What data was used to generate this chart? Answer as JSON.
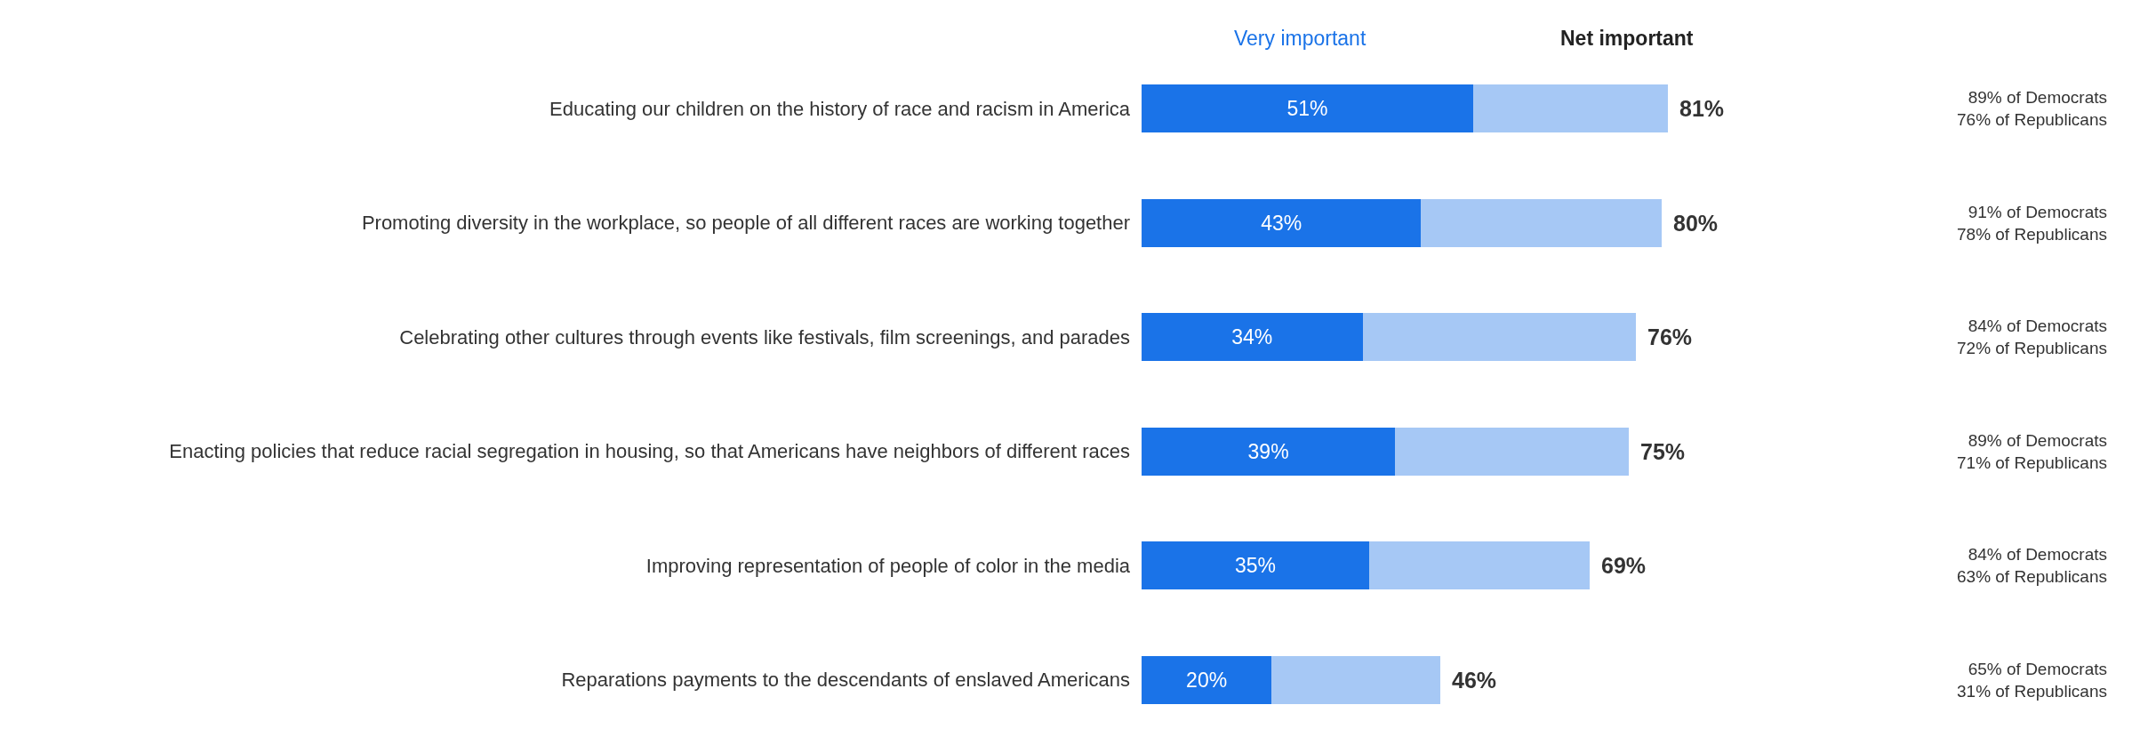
{
  "chart_data": {
    "type": "bar",
    "orientation": "horizontal",
    "stacked": true,
    "legend": false,
    "tick_labels": "y",
    "categories": [
      "Educating our children on the history of race and racism in America",
      "Promoting diversity in the workplace, so people of all different races are working together",
      "Celebrating other cultures through events like festivals, film screenings, and parades",
      "Enacting policies that reduce racial segregation in housing, so that Americans have neighbors of different races",
      "Improving representation of people of color in the media",
      "Reparations payments to the descendants of enslaved Americans"
    ],
    "series": [
      {
        "name": "Very important",
        "color": "#1a73e8",
        "values": [
          51,
          43,
          34,
          39,
          35,
          20
        ],
        "value_labels": [
          "51%",
          "43%",
          "34%",
          "39%",
          "35%",
          "20%"
        ]
      },
      {
        "color": "#a6c8f5",
        "values": [
          30,
          37,
          42,
          36,
          34,
          26
        ]
      }
    ],
    "totals": [
      "81%",
      "80%",
      "76%",
      "75%",
      "69%",
      "46%"
    ],
    "annotations": [
      "Net important",
      "89% of Democrats\n76% of Republicans",
      "91% of Democrats\n78% of Republicans",
      "84% of Democrats\n72% of Republicans",
      "89% of Democrats\n71% of Republicans",
      "84% of Democrats\n63% of Republicans",
      "65% of Democrats\n31% of Republicans"
    ]
  }
}
